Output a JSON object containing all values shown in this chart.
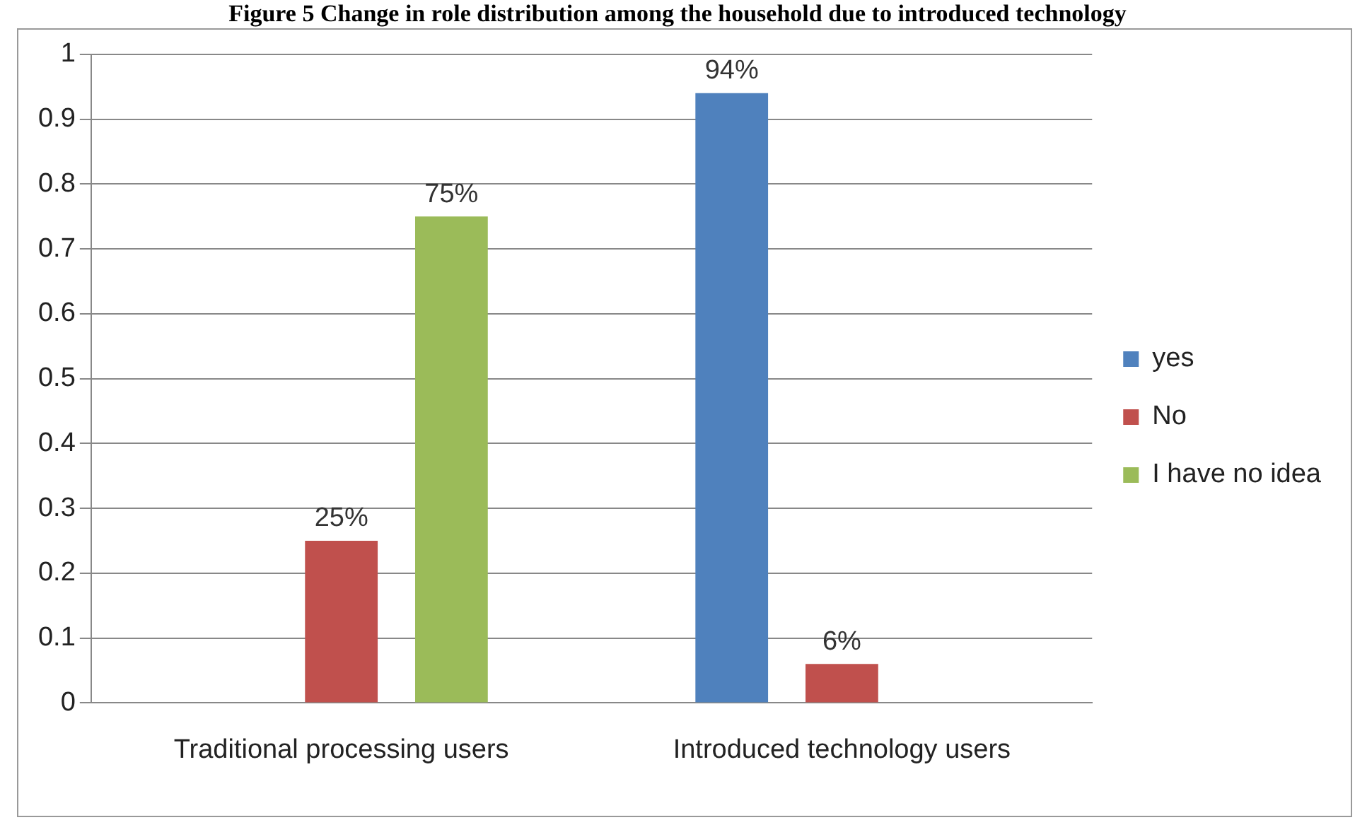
{
  "chart_data": {
    "type": "bar",
    "title": "Figure 5 Change in role distribution among the household due to introduced technology",
    "categories": [
      "Traditional processing users",
      "Introduced technology users"
    ],
    "series": [
      {
        "name": "yes",
        "color": "#4f81bd",
        "values": [
          null,
          0.94
        ],
        "value_labels": [
          null,
          "94%"
        ]
      },
      {
        "name": "No",
        "color": "#c0504d",
        "values": [
          0.25,
          0.06
        ],
        "value_labels": [
          "25%",
          "6%"
        ]
      },
      {
        "name": "I have no idea",
        "color": "#9bbb59",
        "values": [
          0.75,
          null
        ],
        "value_labels": [
          "75%",
          null
        ]
      }
    ],
    "ylim": [
      0,
      1
    ],
    "yticks": [
      0,
      0.1,
      0.2,
      0.3,
      0.4,
      0.5,
      0.6,
      0.7,
      0.8,
      0.9,
      1
    ],
    "grid": "y",
    "legend": "right"
  }
}
